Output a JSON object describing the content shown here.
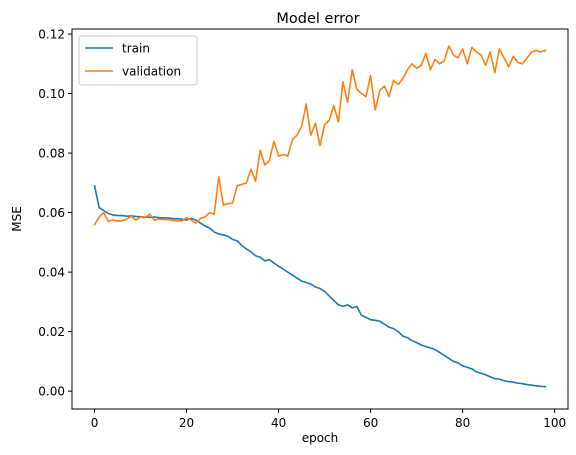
{
  "chart_data": {
    "type": "line",
    "title": "Model error",
    "xlabel": "epoch",
    "ylabel": "MSE",
    "xlim": [
      -4.9,
      102.9
    ],
    "ylim": [
      -0.006,
      0.1217
    ],
    "xticks": [
      0,
      20,
      40,
      60,
      80,
      100
    ],
    "yticks": [
      0.0,
      0.02,
      0.04,
      0.06,
      0.08,
      0.1,
      0.12
    ],
    "ytick_labels": [
      "0.00",
      "0.02",
      "0.04",
      "0.06",
      "0.08",
      "0.10",
      "0.12"
    ],
    "grid": false,
    "legend_position": "top-left",
    "series": [
      {
        "name": "train",
        "color": "#1f77b4",
        "x": [
          0,
          1,
          2,
          3,
          4,
          5,
          6,
          7,
          8,
          9,
          10,
          11,
          12,
          13,
          14,
          15,
          16,
          17,
          18,
          19,
          20,
          21,
          22,
          23,
          24,
          25,
          26,
          27,
          28,
          29,
          30,
          31,
          32,
          33,
          34,
          35,
          36,
          37,
          38,
          39,
          40,
          41,
          42,
          43,
          44,
          45,
          46,
          47,
          48,
          49,
          50,
          51,
          52,
          53,
          54,
          55,
          56,
          57,
          58,
          59,
          60,
          61,
          62,
          63,
          64,
          65,
          66,
          67,
          68,
          69,
          70,
          71,
          72,
          73,
          74,
          75,
          76,
          77,
          78,
          79,
          80,
          81,
          82,
          83,
          84,
          85,
          86,
          87,
          88,
          89,
          90,
          91,
          92,
          93,
          94,
          95,
          96,
          97,
          98
        ],
        "y": [
          0.069,
          0.0617,
          0.0607,
          0.0597,
          0.0592,
          0.059,
          0.059,
          0.0588,
          0.0589,
          0.0587,
          0.0586,
          0.0585,
          0.0584,
          0.0585,
          0.0583,
          0.0582,
          0.0582,
          0.058,
          0.0579,
          0.0578,
          0.0575,
          0.058,
          0.0575,
          0.0565,
          0.0555,
          0.0548,
          0.0535,
          0.0528,
          0.0525,
          0.052,
          0.051,
          0.0505,
          0.049,
          0.0478,
          0.0468,
          0.0455,
          0.045,
          0.0438,
          0.0442,
          0.043,
          0.042,
          0.041,
          0.04,
          0.039,
          0.038,
          0.037,
          0.0365,
          0.036,
          0.035,
          0.0345,
          0.0335,
          0.032,
          0.0305,
          0.029,
          0.0285,
          0.029,
          0.028,
          0.0285,
          0.0255,
          0.0248,
          0.024,
          0.0238,
          0.0235,
          0.0225,
          0.0215,
          0.021,
          0.02,
          0.0185,
          0.018,
          0.017,
          0.0163,
          0.0155,
          0.015,
          0.0145,
          0.014,
          0.013,
          0.012,
          0.011,
          0.01,
          0.0095,
          0.0085,
          0.008,
          0.0075,
          0.0065,
          0.006,
          0.0055,
          0.0048,
          0.0042,
          0.004,
          0.0035,
          0.0032,
          0.003,
          0.0027,
          0.0025,
          0.0022,
          0.002,
          0.0018,
          0.0016,
          0.0015
        ]
      },
      {
        "name": "validation",
        "color": "#ff7f0e",
        "x": [
          0,
          1,
          2,
          3,
          4,
          5,
          6,
          7,
          8,
          9,
          10,
          11,
          12,
          13,
          14,
          15,
          16,
          17,
          18,
          19,
          20,
          21,
          22,
          23,
          24,
          25,
          26,
          27,
          28,
          29,
          30,
          31,
          32,
          33,
          34,
          35,
          36,
          37,
          38,
          39,
          40,
          41,
          42,
          43,
          44,
          45,
          46,
          47,
          48,
          49,
          50,
          51,
          52,
          53,
          54,
          55,
          56,
          57,
          58,
          59,
          60,
          61,
          62,
          63,
          64,
          65,
          66,
          67,
          68,
          69,
          70,
          71,
          72,
          73,
          74,
          75,
          76,
          77,
          78,
          79,
          80,
          81,
          82,
          83,
          84,
          85,
          86,
          87,
          88,
          89,
          90,
          91,
          92,
          93,
          94,
          95,
          96,
          97,
          98
        ],
        "y": [
          0.056,
          0.0585,
          0.06,
          0.057,
          0.0575,
          0.0572,
          0.0573,
          0.0578,
          0.0588,
          0.0575,
          0.0585,
          0.0583,
          0.0595,
          0.0575,
          0.0578,
          0.0577,
          0.0576,
          0.0574,
          0.0573,
          0.0572,
          0.0583,
          0.0575,
          0.0565,
          0.058,
          0.0585,
          0.06,
          0.0595,
          0.072,
          0.0625,
          0.063,
          0.0632,
          0.069,
          0.0695,
          0.07,
          0.0745,
          0.0705,
          0.081,
          0.076,
          0.0775,
          0.084,
          0.079,
          0.0795,
          0.079,
          0.0845,
          0.086,
          0.089,
          0.0965,
          0.086,
          0.09,
          0.0825,
          0.0895,
          0.091,
          0.096,
          0.0905,
          0.104,
          0.097,
          0.108,
          0.1015,
          0.1,
          0.099,
          0.106,
          0.0945,
          0.101,
          0.1025,
          0.099,
          0.1045,
          0.103,
          0.105,
          0.108,
          0.11,
          0.1085,
          0.1095,
          0.1135,
          0.108,
          0.1115,
          0.11,
          0.111,
          0.116,
          0.113,
          0.112,
          0.115,
          0.11,
          0.1155,
          0.114,
          0.113,
          0.1095,
          0.114,
          0.107,
          0.115,
          0.112,
          0.109,
          0.1125,
          0.1105,
          0.11,
          0.112,
          0.114,
          0.1145,
          0.114,
          0.1145
        ]
      }
    ]
  }
}
